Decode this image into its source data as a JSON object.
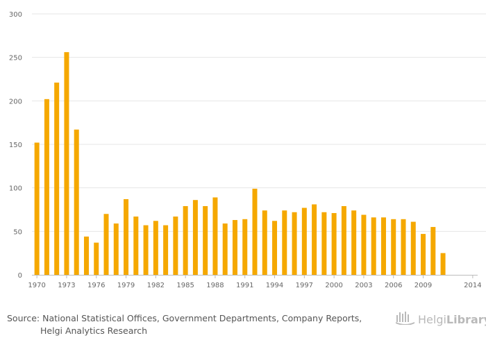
{
  "chart_data": {
    "type": "bar",
    "title": "",
    "xlabel": "",
    "ylabel": "",
    "ylim": [
      0,
      300
    ],
    "yticks": [
      0,
      50,
      100,
      150,
      200,
      250,
      300
    ],
    "x_tick_labels": [
      "1970",
      "1973",
      "1976",
      "1979",
      "1982",
      "1985",
      "1988",
      "1991",
      "1994",
      "1997",
      "2000",
      "2003",
      "2006",
      "2009",
      "2014"
    ],
    "categories": [
      "1970",
      "1971",
      "1972",
      "1973",
      "1974",
      "1975",
      "1976",
      "1977",
      "1978",
      "1979",
      "1980",
      "1981",
      "1982",
      "1983",
      "1984",
      "1985",
      "1986",
      "1987",
      "1988",
      "1989",
      "1990",
      "1991",
      "1992",
      "1993",
      "1994",
      "1995",
      "1996",
      "1997",
      "1998",
      "1999",
      "2000",
      "2001",
      "2002",
      "2003",
      "2004",
      "2005",
      "2006",
      "2007",
      "2008",
      "2009",
      "2010",
      "2011",
      "2012",
      "2013",
      "2014"
    ],
    "values": [
      152,
      202,
      221,
      256,
      167,
      44,
      37,
      70,
      59,
      87,
      67,
      57,
      62,
      57,
      67,
      79,
      86,
      79,
      89,
      59,
      63,
      64,
      99,
      74,
      62,
      74,
      72,
      77,
      81,
      72,
      71,
      79,
      74,
      69,
      66,
      66,
      64,
      64,
      61,
      47,
      55,
      25,
      null,
      null,
      null
    ],
    "bar_color": "#F5A800",
    "grid": true
  },
  "footer": {
    "source_line1": "Source: National Statistical Offices, Government Departments, Company Reports,",
    "source_line2": "Helgi Analytics Research"
  },
  "brand": {
    "name_part1": "Helgi",
    "name_part2": "Library",
    "icon": "helgi-library-logo-icon",
    "color": "#b9b9b9"
  }
}
